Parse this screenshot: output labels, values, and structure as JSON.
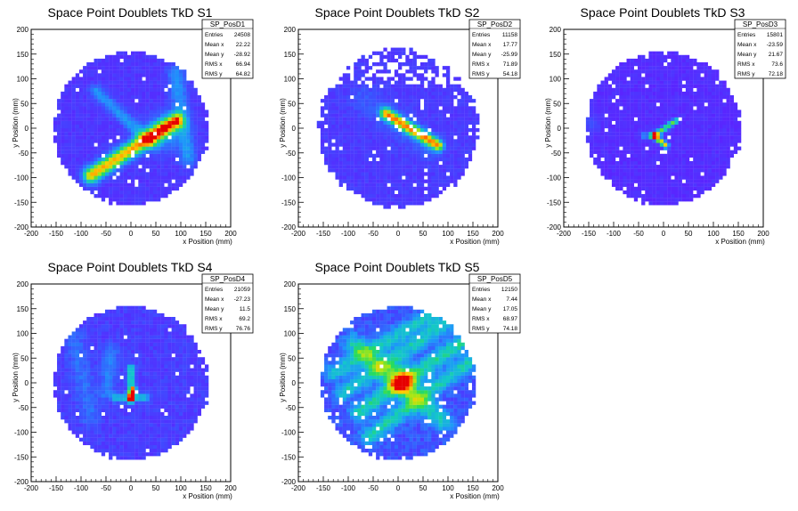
{
  "chart_data": [
    {
      "type": "heatmap",
      "title": "Space Point Doublets TkD S1",
      "xlabel": "x Position (mm)",
      "ylabel": "y Position (mm)",
      "xlim": [
        -200,
        200
      ],
      "ylim": [
        -200,
        200
      ],
      "xticks": [
        "-200",
        "-150",
        "-100",
        "-50",
        "0",
        "50",
        "100",
        "150",
        "200"
      ],
      "yticks": [
        "-200",
        "-150",
        "-100",
        "-50",
        "0",
        "50",
        "100",
        "150",
        "200"
      ],
      "stats": {
        "name": "SP_PosD1",
        "rows": [
          {
            "label": "Entries",
            "value": "24508"
          },
          {
            "label": "Mean x",
            "value": "22.22"
          },
          {
            "label": "Mean y",
            "value": "-28.92"
          },
          {
            "label": "RMS x",
            "value": "66.94"
          },
          {
            "label": "RMS y",
            "value": "64.82"
          }
        ]
      }
    },
    {
      "type": "heatmap",
      "title": "Space Point Doublets TkD S2",
      "xlabel": "x Position (mm)",
      "ylabel": "y Position (mm)",
      "xlim": [
        -200,
        200
      ],
      "ylim": [
        -200,
        200
      ],
      "xticks": [
        "-200",
        "-150",
        "-100",
        "-50",
        "0",
        "50",
        "100",
        "150",
        "200"
      ],
      "yticks": [
        "-200",
        "-150",
        "-100",
        "-50",
        "0",
        "50",
        "100",
        "150",
        "200"
      ],
      "stats": {
        "name": "SP_PosD2",
        "rows": [
          {
            "label": "Entries",
            "value": "11158"
          },
          {
            "label": "Mean x",
            "value": "17.77"
          },
          {
            "label": "Mean y",
            "value": "-25.99"
          },
          {
            "label": "RMS x",
            "value": "71.89"
          },
          {
            "label": "RMS y",
            "value": "54.18"
          }
        ]
      }
    },
    {
      "type": "heatmap",
      "title": "Space Point Doublets TkD S3",
      "xlabel": "x Position (mm)",
      "ylabel": "y Position (mm)",
      "xlim": [
        -200,
        200
      ],
      "ylim": [
        -200,
        200
      ],
      "xticks": [
        "-200",
        "-150",
        "-100",
        "-50",
        "0",
        "50",
        "100",
        "150",
        "200"
      ],
      "yticks": [
        "-200",
        "-150",
        "-100",
        "-50",
        "0",
        "50",
        "100",
        "150",
        "200"
      ],
      "stats": {
        "name": "SP_PosD3",
        "rows": [
          {
            "label": "Entries",
            "value": "15801"
          },
          {
            "label": "Mean x",
            "value": "-23.59"
          },
          {
            "label": "Mean y",
            "value": "21.67"
          },
          {
            "label": "RMS x",
            "value": "73.6"
          },
          {
            "label": "RMS y",
            "value": "72.18"
          }
        ]
      }
    },
    {
      "type": "heatmap",
      "title": "Space Point Doublets TkD S4",
      "xlabel": "x Position (mm)",
      "ylabel": "y Position (mm)",
      "xlim": [
        -200,
        200
      ],
      "ylim": [
        -200,
        200
      ],
      "xticks": [
        "-200",
        "-150",
        "-100",
        "-50",
        "0",
        "50",
        "100",
        "150",
        "200"
      ],
      "yticks": [
        "-200",
        "-150",
        "-100",
        "-50",
        "0",
        "50",
        "100",
        "150",
        "200"
      ],
      "stats": {
        "name": "SP_PosD4",
        "rows": [
          {
            "label": "Entries",
            "value": "21059"
          },
          {
            "label": "Mean x",
            "value": "-27.23"
          },
          {
            "label": "Mean y",
            "value": "11.5"
          },
          {
            "label": "RMS x",
            "value": "69.2"
          },
          {
            "label": "RMS y",
            "value": "76.76"
          }
        ]
      }
    },
    {
      "type": "heatmap",
      "title": "Space Point Doublets TkD S5",
      "xlabel": "x Position (mm)",
      "ylabel": "y Position (mm)",
      "xlim": [
        -200,
        200
      ],
      "ylim": [
        -200,
        200
      ],
      "xticks": [
        "-200",
        "-150",
        "-100",
        "-50",
        "0",
        "50",
        "100",
        "150",
        "200"
      ],
      "yticks": [
        "-200",
        "-150",
        "-100",
        "-50",
        "0",
        "50",
        "100",
        "150",
        "200"
      ],
      "stats": {
        "name": "SP_PosD5",
        "rows": [
          {
            "label": "Entries",
            "value": "12150"
          },
          {
            "label": "Mean x",
            "value": "7.44"
          },
          {
            "label": "Mean y",
            "value": "17.05"
          },
          {
            "label": "RMS x",
            "value": "68.97"
          },
          {
            "label": "RMS y",
            "value": "74.18"
          }
        ]
      }
    }
  ]
}
